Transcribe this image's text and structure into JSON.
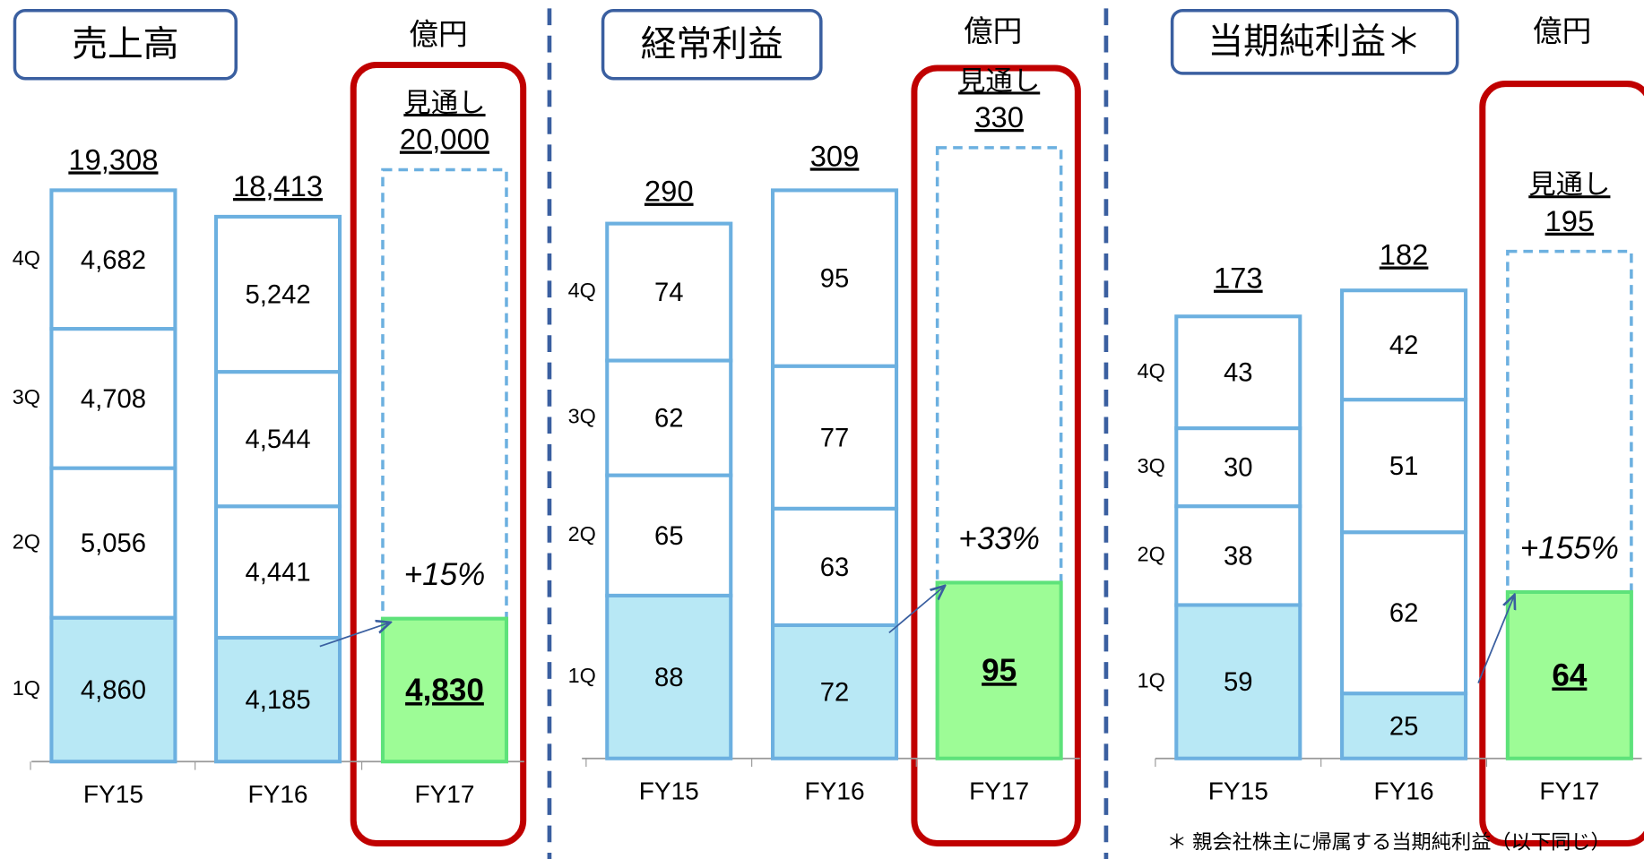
{
  "chart_data": [
    {
      "type": "bar",
      "stacked": true,
      "title": "売上高",
      "unit": "億円",
      "categories": [
        "FY15",
        "FY16",
        "FY17"
      ],
      "series": [
        {
          "name": "1Q",
          "color": "#b8e8f5",
          "values": [
            4860,
            4185,
            4830
          ],
          "value_labels": [
            "4,860",
            "4,185",
            "4,830"
          ]
        },
        {
          "name": "2Q",
          "color": "#ffffff",
          "values": [
            5056,
            4441,
            null
          ],
          "value_labels": [
            "5,056",
            "4,441",
            null
          ]
        },
        {
          "name": "3Q",
          "color": "#ffffff",
          "values": [
            4708,
            4544,
            null
          ],
          "value_labels": [
            "4,708",
            "4,544",
            null
          ]
        },
        {
          "name": "4Q",
          "color": "#ffffff",
          "values": [
            4682,
            5242,
            null
          ],
          "value_labels": [
            "4,682",
            "5,242",
            null
          ]
        }
      ],
      "totals": [
        19308,
        18413,
        null
      ],
      "total_labels": [
        "19,308",
        "18,413",
        null
      ],
      "forecast": {
        "label": "見通し",
        "value": 20000,
        "value_label": "20,000",
        "growth": "+15%"
      },
      "ylim": [
        0,
        20000
      ],
      "edge_color": "#6cb0e0",
      "highlight_color": "#9dfc96",
      "highlight_edge": "#5ee27a"
    },
    {
      "type": "bar",
      "stacked": true,
      "title": "経常利益",
      "unit": "億円",
      "categories": [
        "FY15",
        "FY16",
        "FY17"
      ],
      "series": [
        {
          "name": "1Q",
          "color": "#b8e8f5",
          "values": [
            88,
            72,
            95
          ]
        },
        {
          "name": "2Q",
          "color": "#ffffff",
          "values": [
            65,
            63,
            null
          ]
        },
        {
          "name": "3Q",
          "color": "#ffffff",
          "values": [
            62,
            77,
            null
          ]
        },
        {
          "name": "4Q",
          "color": "#ffffff",
          "values": [
            74,
            95,
            null
          ]
        }
      ],
      "totals": [
        290,
        309,
        null
      ],
      "forecast": {
        "label": "見通し",
        "value": 330,
        "growth": "+33%"
      },
      "ylim": [
        0,
        330
      ],
      "edge_color": "#6cb0e0",
      "highlight_color": "#9dfc96",
      "highlight_edge": "#5ee27a"
    },
    {
      "type": "bar",
      "stacked": true,
      "title": "当期純利益＊",
      "unit": "億円",
      "categories": [
        "FY15",
        "FY16",
        "FY17"
      ],
      "series": [
        {
          "name": "1Q",
          "color": "#b8e8f5",
          "values": [
            59,
            25,
            64
          ]
        },
        {
          "name": "2Q",
          "color": "#ffffff",
          "values": [
            38,
            62,
            null
          ]
        },
        {
          "name": "3Q",
          "color": "#ffffff",
          "values": [
            30,
            51,
            null
          ]
        },
        {
          "name": "4Q",
          "color": "#ffffff",
          "values": [
            43,
            42,
            null
          ]
        }
      ],
      "totals": [
        173,
        182,
        null
      ],
      "forecast": {
        "label": "見通し",
        "value": 195,
        "growth": "+155%"
      },
      "footnote": "＊ 親会社株主に帰属する当期純利益（以下同じ）",
      "ylim": [
        0,
        195
      ],
      "edge_color": "#6cb0e0",
      "highlight_color": "#9dfc96",
      "highlight_edge": "#5ee27a"
    }
  ]
}
